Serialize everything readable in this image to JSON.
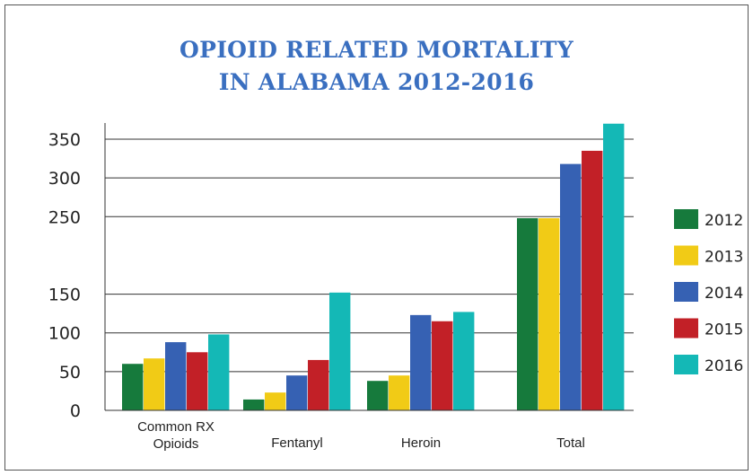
{
  "chart_data": {
    "type": "bar",
    "title_lines": [
      "OPIOID RELATED MORTALITY",
      "IN ALABAMA 2012-2016"
    ],
    "categories": [
      [
        "Common RX",
        "Opioids"
      ],
      [
        "Fentanyl"
      ],
      [
        "Heroin"
      ],
      [
        "Total"
      ]
    ],
    "yticks": [
      0,
      50,
      100,
      150,
      250,
      300,
      350
    ],
    "ylim": [
      0,
      370
    ],
    "grid": true,
    "legend_position": "right",
    "series": [
      {
        "name": "2012",
        "color": "#167a3c",
        "values": [
          60,
          14,
          38,
          248
        ]
      },
      {
        "name": "2013",
        "color": "#f1cb16",
        "values": [
          67,
          23,
          45,
          248
        ]
      },
      {
        "name": "2014",
        "color": "#3661b3",
        "values": [
          88,
          45,
          123,
          318
        ]
      },
      {
        "name": "2015",
        "color": "#c22027",
        "values": [
          75,
          65,
          115,
          335
        ]
      },
      {
        "name": "2016",
        "color": "#14b8b6",
        "values": [
          98,
          152,
          127,
          370
        ]
      }
    ]
  }
}
